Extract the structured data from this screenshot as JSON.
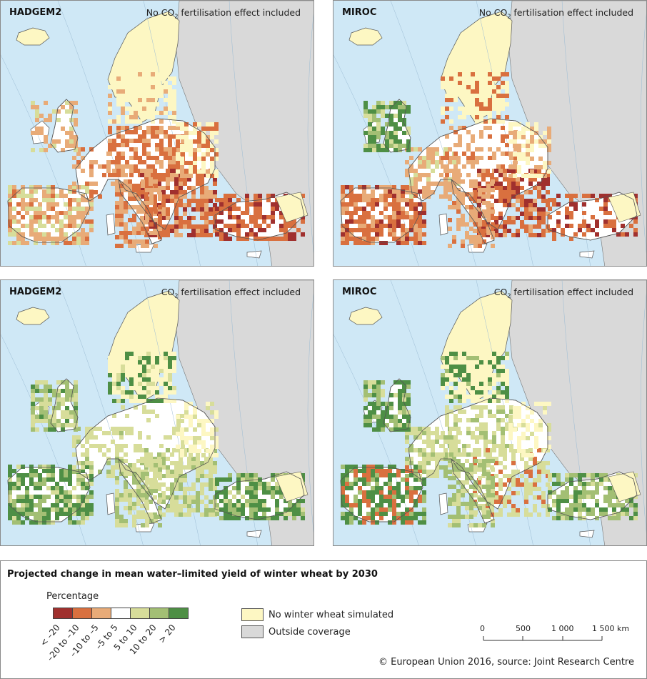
{
  "panels": [
    {
      "model": "HADGEM2",
      "scenario_pre": "No CO",
      "scenario_sub": "2",
      "scenario_post": " fertilisation effect included"
    },
    {
      "model": "MIROC",
      "scenario_pre": "No CO",
      "scenario_sub": "2",
      "scenario_post": " fertilisation effect included"
    },
    {
      "model": "HADGEM2",
      "scenario_pre": "CO",
      "scenario_sub": "2",
      "scenario_post": " fertilisation effect included"
    },
    {
      "model": "MIROC",
      "scenario_pre": "CO",
      "scenario_sub": "2",
      "scenario_post": " fertilisation effect included"
    }
  ],
  "legend": {
    "title": "Projected change in mean water–limited yield of winter wheat by 2030",
    "unit": "Percentage",
    "classes": [
      {
        "label": "< –20",
        "color": "#a0302e"
      },
      {
        "label": "–20 to –10",
        "color": "#d9703f"
      },
      {
        "label": "–10 to –5",
        "color": "#e8ab78"
      },
      {
        "label": "–5 to 5",
        "color": "#ffffff"
      },
      {
        "label": "5 to 10",
        "color": "#d7dd9a"
      },
      {
        "label": "10 to 20",
        "color": "#a3bf74"
      },
      {
        "label": "> 20",
        "color": "#4e8f45"
      }
    ],
    "no_wheat": {
      "label": "No winter wheat simulated",
      "color": "#fdf7c3"
    },
    "outside": {
      "label": "Outside coverage",
      "color": "#d9d9d9"
    }
  },
  "scale": {
    "ticks": [
      "0",
      "500",
      "1 000",
      "1 500 km"
    ]
  },
  "credit": "© European Union 2016, source: Joint Research Centre",
  "colors": {
    "sea": "#cfe8f6",
    "outside": "#d9d9d9",
    "border": "#555555"
  }
}
